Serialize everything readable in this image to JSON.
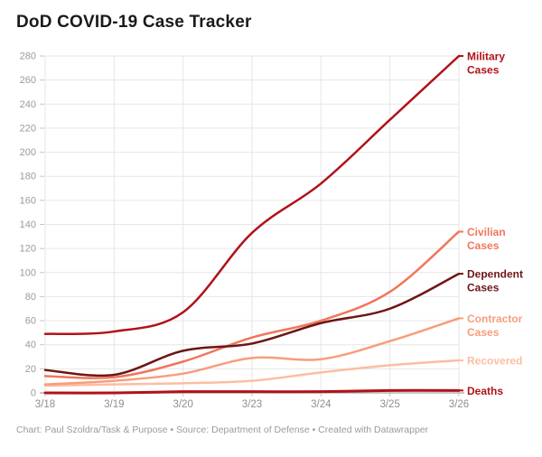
{
  "title": "DoD COVID-19 Case Tracker",
  "footer": "Chart: Paul Szoldra/Task & Purpose • Source: Department of Defense • Created with Datawrapper",
  "colors": {
    "grid": "#e6e6e6",
    "tick": "#c6c6c6",
    "baseline": "#a6a6a6",
    "axis_text": "#9b9b9b"
  },
  "chart_data": {
    "type": "line",
    "title": "DoD COVID-19 Case Tracker",
    "x": [
      "3/18",
      "3/19",
      "3/20",
      "3/23",
      "3/24",
      "3/25",
      "3/26"
    ],
    "series": [
      {
        "name": "Military Cases",
        "color": "#b01218",
        "values": [
          49,
          51,
          67,
          133,
          174,
          227,
          280
        ]
      },
      {
        "name": "Civilian Cases",
        "color": "#f0765b",
        "values": [
          14,
          13,
          26,
          46,
          60,
          84,
          134
        ]
      },
      {
        "name": "Dependent Cases",
        "color": "#6e1514",
        "values": [
          19,
          15,
          35,
          41,
          58,
          70,
          99
        ]
      },
      {
        "name": "Contractor Cases",
        "color": "#f79d7d",
        "values": [
          7,
          10,
          16,
          29,
          28,
          43,
          62
        ]
      },
      {
        "name": "Recovered",
        "color": "#fcbda2",
        "values": [
          6,
          7,
          8,
          10,
          17,
          23,
          27
        ]
      },
      {
        "name": "Deaths",
        "color": "#b01218",
        "values": [
          0,
          0,
          1,
          1,
          1,
          2,
          2
        ]
      }
    ],
    "ylim": [
      0,
      280
    ],
    "ytick_step": 20,
    "grid": true,
    "legend_position": "right-direct-labels",
    "xlabel": "",
    "ylabel": ""
  }
}
